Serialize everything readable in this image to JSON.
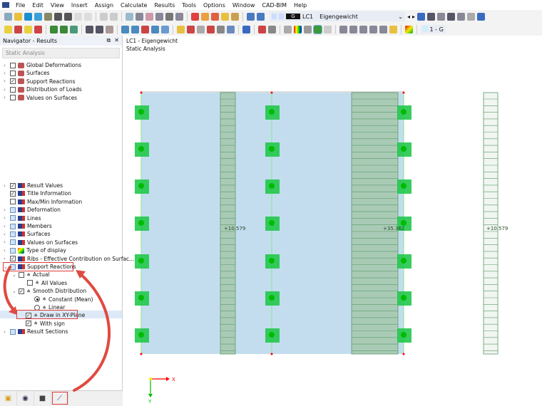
{
  "menu": [
    "File",
    "Edit",
    "View",
    "Insert",
    "Assign",
    "Calculate",
    "Results",
    "Tools",
    "Options",
    "Window",
    "CAD-BIM",
    "Help"
  ],
  "toolbar": {
    "lc_badge": "G",
    "lc_id": "LC1",
    "lc_name": "Eigengewicht",
    "right_combo": "1 - G"
  },
  "navigator": {
    "title": "Navigator - Results",
    "dropdown": "Static Analysis",
    "top_items": [
      {
        "label": "Global Deformations",
        "checked": false
      },
      {
        "label": "Surfaces",
        "checked": false
      },
      {
        "label": "Support Reactions",
        "checked": true
      },
      {
        "label": "Distribution of Loads",
        "checked": false
      },
      {
        "label": "Values on Surfaces",
        "checked": false
      }
    ],
    "items": [
      {
        "label": "Result Values",
        "checked": true
      },
      {
        "label": "Title Information",
        "checked": true
      },
      {
        "label": "Max/Min Information",
        "checked": false
      },
      {
        "label": "Deformation",
        "checked": false
      },
      {
        "label": "Lines",
        "checked": false
      },
      {
        "label": "Members",
        "checked": false
      },
      {
        "label": "Surfaces",
        "checked": false
      },
      {
        "label": "Values on Surfaces",
        "checked": false
      },
      {
        "label": "Type of display",
        "checked": false
      },
      {
        "label": "Ribs - Effective Contribution on Surfac...",
        "checked": true
      },
      {
        "label": "Support Reactions",
        "checked": false,
        "expanded": true
      },
      {
        "label": "Actual",
        "checked": false
      },
      {
        "label": "All Values",
        "checked": false
      },
      {
        "label": "Smooth Distribution",
        "checked": true
      },
      {
        "label": "Constant (Mean)",
        "radio": true,
        "selected": true
      },
      {
        "label": "Linear",
        "radio": true,
        "selected": false
      },
      {
        "label": "Draw in XY-Plane",
        "checked": true,
        "selected_row": true
      },
      {
        "label": "With sign",
        "checked": true
      },
      {
        "label": "Result Sections",
        "checked": false
      }
    ]
  },
  "view": {
    "title_line1": "LC1 - Eigengewicht",
    "title_line2": "Static Analysis",
    "labels": [
      "+10.579",
      "+35.362",
      "+10.579"
    ],
    "axis_x": "X",
    "axis_y": "Y"
  },
  "colors": {
    "surface": "#c3ddef",
    "support": "#22c84a",
    "hatch": "#a9cbb6",
    "highlight": "#e03a3a"
  }
}
